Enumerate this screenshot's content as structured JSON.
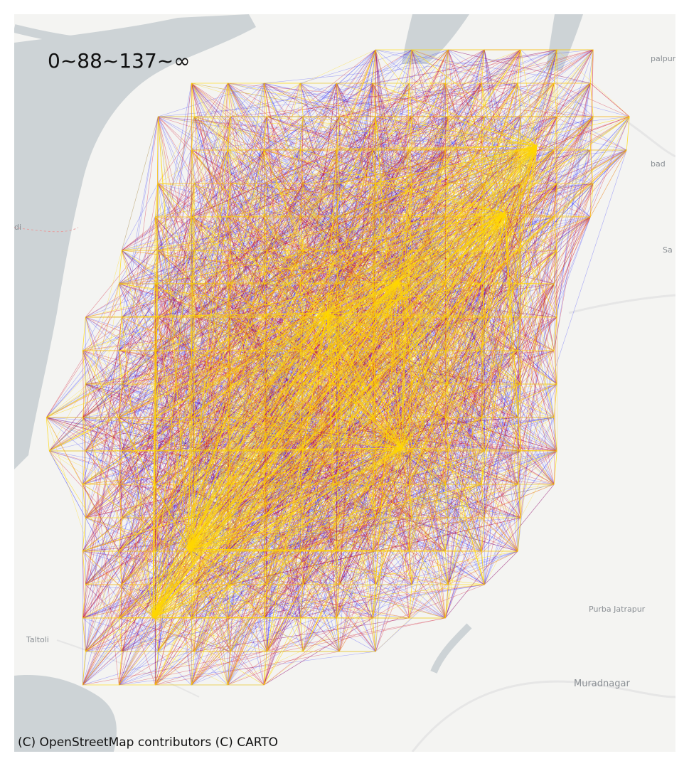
{
  "map": {
    "legend_title": "0~88~137~∞",
    "attribution": "(C) OpenStreetMap contributors (C) CARTO",
    "place_labels": {
      "gopalpur": "palpur",
      "abad": "bad",
      "edge_left": "di",
      "edge_right": "Sa",
      "purba_jatrapur": "Purba Jatrapur",
      "taltoli": "Taltoli",
      "muradnagar": "Muradnagar"
    },
    "colors": {
      "land": "#f4f4f2",
      "water": "#cdd3d6",
      "road": "#e4e4e4",
      "edge_low": "#1a1aff",
      "edge_mid": "#d0102a",
      "edge_high": "#ffd700"
    },
    "edge_classes": [
      "0~88",
      "88~137",
      "137~∞"
    ]
  }
}
